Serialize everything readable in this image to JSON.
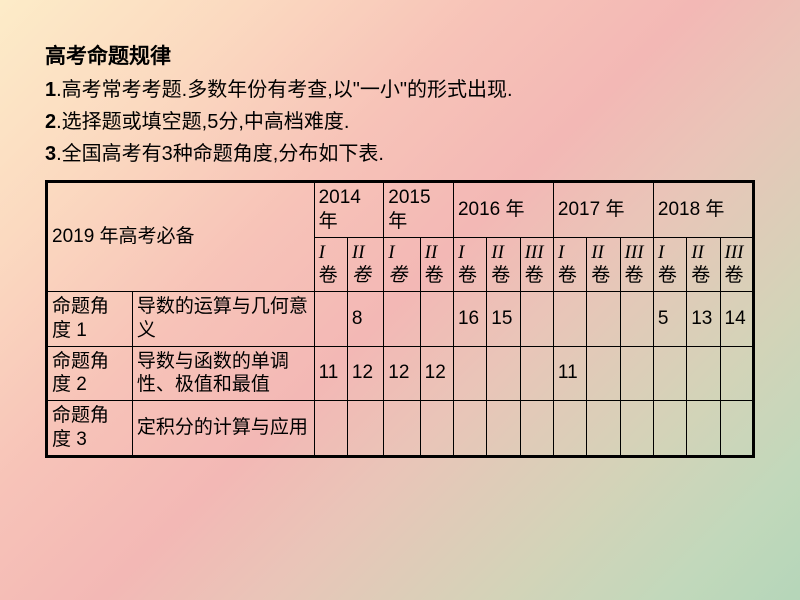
{
  "title": "高考命题规律",
  "lines": {
    "l1_num": "1",
    "l1_text": ".高考常考考题.多数年份有考查,以\"一小\"的形式出现.",
    "l2_num": "2",
    "l2_text": ".选择题或填空题,5分,中高档难度.",
    "l3_num": "3",
    "l3_text": ".全国高考有3种命题角度,分布如下表."
  },
  "table": {
    "header_left": "2019 年高考必备",
    "years": [
      "2014 年",
      "2015 年",
      "2016 年",
      "2017 年",
      "2018 年"
    ],
    "sub2014": [
      "I",
      "卷",
      "II卷"
    ],
    "sub2015": [
      "I 卷",
      "II",
      "卷"
    ],
    "sub2016": [
      "I",
      "卷",
      "II",
      "卷",
      "III",
      "卷"
    ],
    "sub2017": [
      "I",
      "卷",
      "II",
      "卷",
      "III",
      "卷"
    ],
    "sub2018": [
      "I",
      "卷",
      "II",
      "卷",
      "III",
      "卷"
    ],
    "rows": [
      {
        "angle": "命题角度 1",
        "desc": "导数的运算与几何意义",
        "cells": [
          "",
          "8",
          "",
          "",
          "16",
          "15",
          "",
          "",
          "",
          "",
          "5",
          "13",
          "14"
        ]
      },
      {
        "angle": "命题角度 2",
        "desc": "导数与函数的单调性、极值和最值",
        "cells": [
          "11",
          "12",
          "12",
          "12",
          "",
          "",
          "",
          "11",
          "",
          "",
          "",
          "",
          ""
        ]
      },
      {
        "angle": "命题角度 3",
        "desc": "定积分的计算与应用",
        "cells": [
          "",
          "",
          "",
          "",
          "",
          "",
          "",
          "",
          "",
          "",
          "",
          "",
          ""
        ]
      }
    ]
  },
  "style": {
    "title_fontsize": 21,
    "body_fontsize": 20,
    "table_fontsize": 19,
    "border_color": "#000000"
  }
}
